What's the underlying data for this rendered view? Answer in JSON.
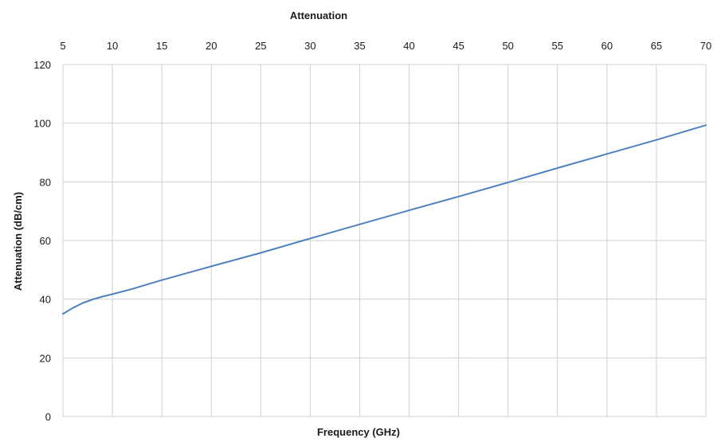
{
  "chart_data": {
    "type": "line",
    "title": "Attenuation",
    "xlabel": "Frequency (GHz)",
    "ylabel": "Attenuation (dB/cm)",
    "xlim": [
      5,
      70
    ],
    "ylim": [
      0,
      120
    ],
    "x_ticks": [
      5,
      10,
      15,
      20,
      25,
      30,
      35,
      40,
      45,
      50,
      55,
      60,
      65,
      70
    ],
    "y_ticks": [
      0,
      20,
      40,
      60,
      80,
      100,
      120
    ],
    "x_axis_position": "top",
    "grid": true,
    "legend": "none",
    "series": [
      {
        "color": "#4f81bd",
        "x": [
          5,
          6,
          7,
          8,
          9,
          10,
          12,
          15,
          20,
          25,
          30,
          35,
          40,
          45,
          50,
          55,
          60,
          65,
          70
        ],
        "y": [
          35.0,
          37.0,
          38.7,
          39.9,
          40.9,
          41.7,
          43.5,
          46.5,
          51.2,
          55.8,
          60.7,
          65.5,
          70.3,
          75.0,
          79.8,
          84.7,
          89.5,
          94.3,
          99.3
        ]
      }
    ]
  }
}
